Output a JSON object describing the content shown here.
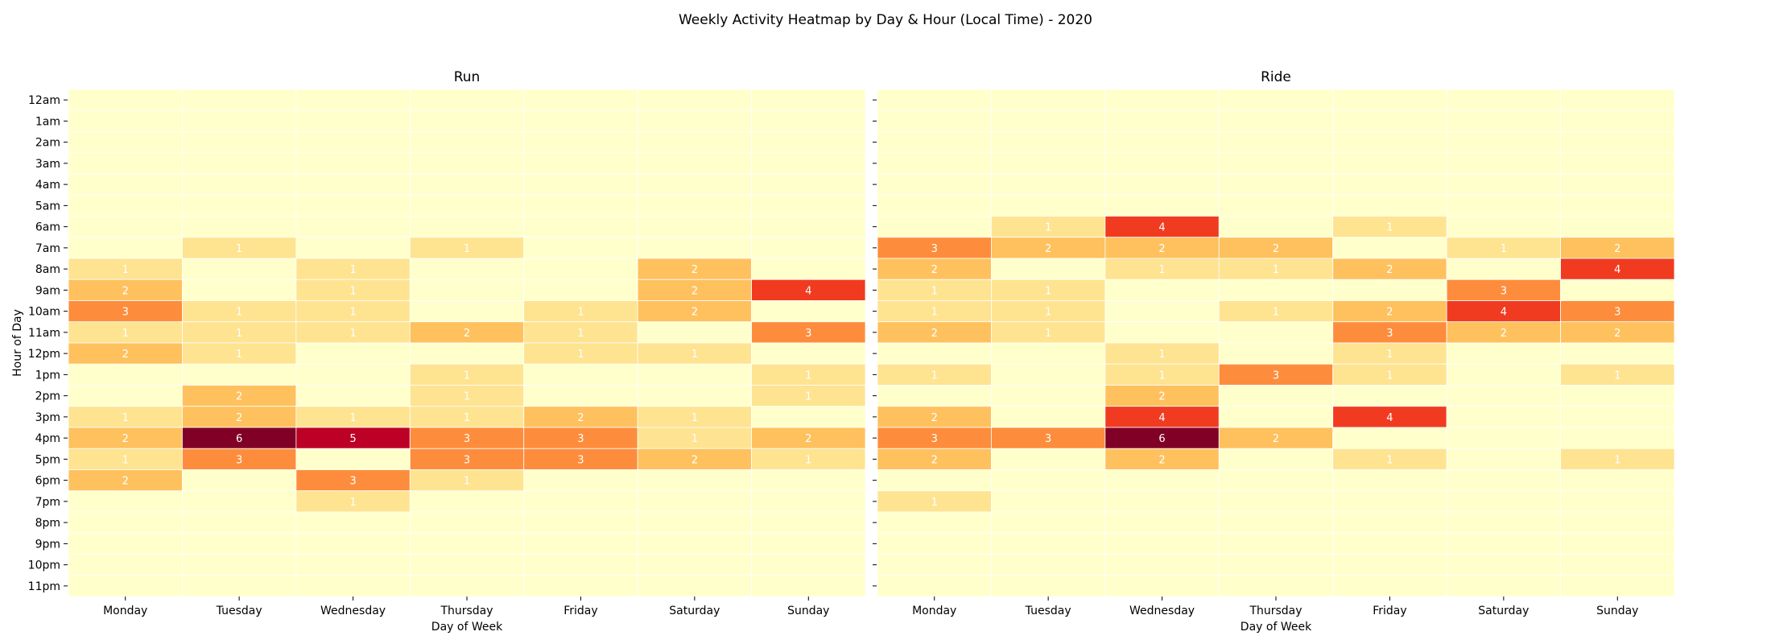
{
  "figure": {
    "title": "Weekly Activity Heatmap by Day & Hour (Local Time) - 2020"
  },
  "colors": {
    "scale": [
      "#ffffcc",
      "#fee391",
      "#fec15e",
      "#fd8d3c",
      "#f03b20",
      "#bd0026",
      "#800026"
    ],
    "grid_line": "#ffffff",
    "label_on_light": "#ffffff",
    "label_on_dark": "#ffffff"
  },
  "chart_data": [
    {
      "type": "heatmap",
      "title": "Run",
      "xlabel": "Day of Week",
      "ylabel": "Hour of Day",
      "x": [
        "Monday",
        "Tuesday",
        "Wednesday",
        "Thursday",
        "Friday",
        "Saturday",
        "Sunday"
      ],
      "y": [
        "12am",
        "1am",
        "2am",
        "3am",
        "4am",
        "5am",
        "6am",
        "7am",
        "8am",
        "9am",
        "10am",
        "11am",
        "12pm",
        "1pm",
        "2pm",
        "3pm",
        "4pm",
        "5pm",
        "6pm",
        "7pm",
        "8pm",
        "9pm",
        "10pm",
        "11pm"
      ],
      "values": [
        [
          0,
          0,
          0,
          0,
          0,
          0,
          0
        ],
        [
          0,
          0,
          0,
          0,
          0,
          0,
          0
        ],
        [
          0,
          0,
          0,
          0,
          0,
          0,
          0
        ],
        [
          0,
          0,
          0,
          0,
          0,
          0,
          0
        ],
        [
          0,
          0,
          0,
          0,
          0,
          0,
          0
        ],
        [
          0,
          0,
          0,
          0,
          0,
          0,
          0
        ],
        [
          0,
          0,
          0,
          0,
          0,
          0,
          0
        ],
        [
          0,
          1,
          0,
          1,
          0,
          0,
          0
        ],
        [
          1,
          0,
          1,
          0,
          0,
          2,
          0
        ],
        [
          2,
          0,
          1,
          0,
          0,
          2,
          4
        ],
        [
          3,
          1,
          1,
          0,
          1,
          2,
          0
        ],
        [
          1,
          1,
          1,
          2,
          1,
          0,
          3
        ],
        [
          2,
          1,
          0,
          0,
          1,
          1,
          0
        ],
        [
          0,
          0,
          0,
          1,
          0,
          0,
          1
        ],
        [
          0,
          2,
          0,
          1,
          0,
          0,
          1
        ],
        [
          1,
          2,
          1,
          1,
          2,
          1,
          0
        ],
        [
          2,
          6,
          5,
          3,
          3,
          1,
          2
        ],
        [
          1,
          3,
          0,
          3,
          3,
          2,
          1
        ],
        [
          2,
          0,
          3,
          1,
          0,
          0,
          0
        ],
        [
          0,
          0,
          1,
          0,
          0,
          0,
          0
        ],
        [
          0,
          0,
          0,
          0,
          0,
          0,
          0
        ],
        [
          0,
          0,
          0,
          0,
          0,
          0,
          0
        ],
        [
          0,
          0,
          0,
          0,
          0,
          0,
          0
        ],
        [
          0,
          0,
          0,
          0,
          0,
          0,
          0
        ]
      ],
      "vmin": 0,
      "vmax": 6,
      "grid": true,
      "legend": "none"
    },
    {
      "type": "heatmap",
      "title": "Ride",
      "xlabel": "Day of Week",
      "ylabel": "",
      "x": [
        "Monday",
        "Tuesday",
        "Wednesday",
        "Thursday",
        "Friday",
        "Saturday",
        "Sunday"
      ],
      "y": [
        "12am",
        "1am",
        "2am",
        "3am",
        "4am",
        "5am",
        "6am",
        "7am",
        "8am",
        "9am",
        "10am",
        "11am",
        "12pm",
        "1pm",
        "2pm",
        "3pm",
        "4pm",
        "5pm",
        "6pm",
        "7pm",
        "8pm",
        "9pm",
        "10pm",
        "11pm"
      ],
      "values": [
        [
          0,
          0,
          0,
          0,
          0,
          0,
          0
        ],
        [
          0,
          0,
          0,
          0,
          0,
          0,
          0
        ],
        [
          0,
          0,
          0,
          0,
          0,
          0,
          0
        ],
        [
          0,
          0,
          0,
          0,
          0,
          0,
          0
        ],
        [
          0,
          0,
          0,
          0,
          0,
          0,
          0
        ],
        [
          0,
          0,
          0,
          0,
          0,
          0,
          0
        ],
        [
          0,
          1,
          4,
          0,
          1,
          0,
          0
        ],
        [
          3,
          2,
          2,
          2,
          0,
          1,
          2
        ],
        [
          2,
          0,
          1,
          1,
          2,
          0,
          4
        ],
        [
          1,
          1,
          0,
          0,
          0,
          3,
          0
        ],
        [
          1,
          1,
          0,
          1,
          2,
          4,
          3
        ],
        [
          2,
          1,
          0,
          0,
          3,
          2,
          2
        ],
        [
          0,
          0,
          1,
          0,
          1,
          0,
          0
        ],
        [
          1,
          0,
          1,
          3,
          1,
          0,
          1
        ],
        [
          0,
          0,
          2,
          0,
          0,
          0,
          0
        ],
        [
          2,
          0,
          4,
          0,
          4,
          0,
          0
        ],
        [
          3,
          3,
          6,
          2,
          0,
          0,
          0
        ],
        [
          2,
          0,
          2,
          0,
          1,
          0,
          1
        ],
        [
          0,
          0,
          0,
          0,
          0,
          0,
          0
        ],
        [
          1,
          0,
          0,
          0,
          0,
          0,
          0
        ],
        [
          0,
          0,
          0,
          0,
          0,
          0,
          0
        ],
        [
          0,
          0,
          0,
          0,
          0,
          0,
          0
        ],
        [
          0,
          0,
          0,
          0,
          0,
          0,
          0
        ],
        [
          0,
          0,
          0,
          0,
          0,
          0,
          0
        ]
      ],
      "vmin": 0,
      "vmax": 6,
      "grid": true,
      "legend": "none"
    }
  ]
}
